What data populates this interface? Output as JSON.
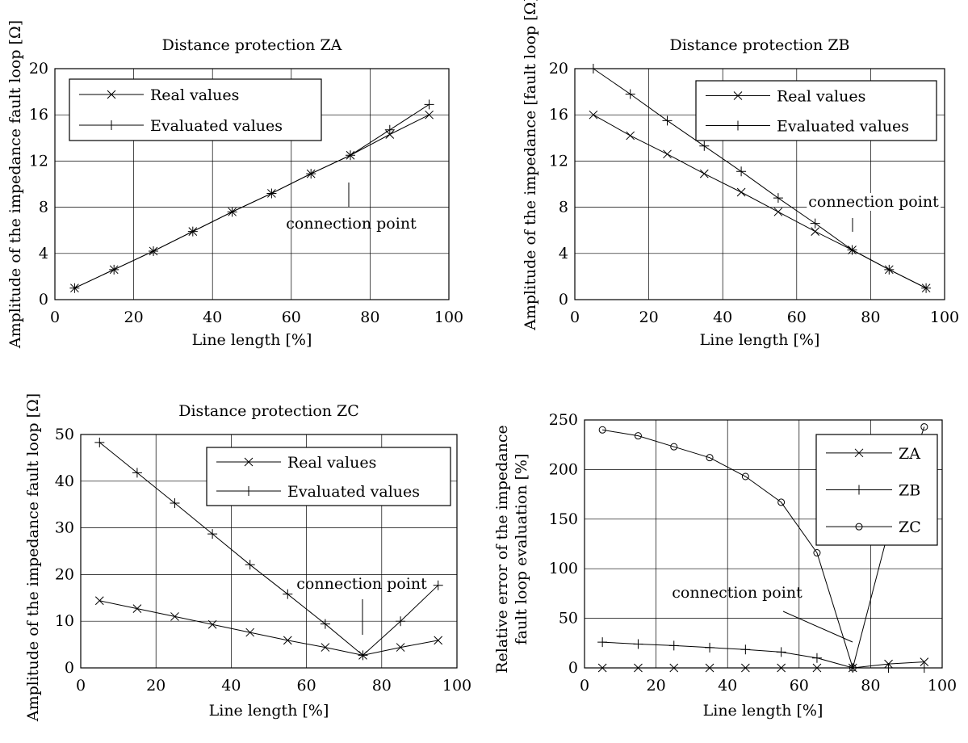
{
  "chart_data": [
    {
      "type": "line",
      "title": "Distance protection ZA",
      "xlabel": "Line length [%]",
      "ylabel": "Amplitude of the impedance fault loop [Ω]",
      "xlim": [
        0,
        100
      ],
      "ylim": [
        0,
        20
      ],
      "xticks": [
        "0",
        "20",
        "40",
        "60",
        "80",
        "100"
      ],
      "yticks": [
        "0",
        "4",
        "8",
        "12",
        "16",
        "20"
      ],
      "grid": true,
      "legend_position": "top-left",
      "x": [
        5,
        15,
        25,
        35,
        45,
        55,
        65,
        75,
        85,
        95
      ],
      "series": [
        {
          "name": "Real values",
          "marker": "x",
          "values": [
            1.0,
            2.6,
            4.2,
            5.9,
            7.6,
            9.2,
            10.9,
            12.5,
            14.3,
            16.0
          ]
        },
        {
          "name": "Evaluated values",
          "marker": "+",
          "values": [
            1.0,
            2.6,
            4.2,
            5.9,
            7.6,
            9.2,
            10.9,
            12.5,
            14.7,
            16.9
          ]
        }
      ],
      "annotation": {
        "text": "connection point",
        "x": 75
      }
    },
    {
      "type": "line",
      "title": "Distance protection ZB",
      "xlabel": "Line length [%]",
      "ylabel": "Amplitude of the impedance [fault loop [Ω]",
      "xlim": [
        0,
        100
      ],
      "ylim": [
        0,
        20
      ],
      "xticks": [
        "0",
        "20",
        "40",
        "60",
        "80",
        "100"
      ],
      "yticks": [
        "0",
        "4",
        "8",
        "12",
        "16",
        "20"
      ],
      "grid": true,
      "legend_position": "top-right",
      "x": [
        5,
        15,
        25,
        35,
        45,
        55,
        65,
        75,
        85,
        95
      ],
      "series": [
        {
          "name": "Real values",
          "marker": "x",
          "values": [
            16.0,
            14.2,
            12.6,
            10.9,
            9.3,
            7.6,
            5.9,
            4.3,
            2.6,
            1.0
          ]
        },
        {
          "name": "Evaluated values",
          "marker": "+",
          "values": [
            20.0,
            17.8,
            15.5,
            13.3,
            11.1,
            8.8,
            6.6,
            4.3,
            2.6,
            1.0
          ]
        }
      ],
      "annotation": {
        "text": "connection point",
        "x": 75
      }
    },
    {
      "type": "line",
      "title": "Distance protection ZC",
      "xlabel": "Line length [%]",
      "ylabel": "Amplitude of the impedance fault loop [Ω]",
      "xlim": [
        0,
        100
      ],
      "ylim": [
        0,
        50
      ],
      "xticks": [
        "0",
        "20",
        "40",
        "60",
        "80",
        "100"
      ],
      "yticks": [
        "0",
        "10",
        "20",
        "30",
        "40",
        "50"
      ],
      "grid": true,
      "legend_position": "top-right",
      "x": [
        5,
        15,
        25,
        35,
        45,
        55,
        65,
        75,
        85,
        95
      ],
      "series": [
        {
          "name": "Real values",
          "marker": "x",
          "values": [
            14.4,
            12.7,
            11.0,
            9.3,
            7.6,
            5.9,
            4.4,
            2.7,
            4.4,
            5.9
          ]
        },
        {
          "name": "Evaluated values",
          "marker": "+",
          "values": [
            48.3,
            41.8,
            35.3,
            28.7,
            22.1,
            15.8,
            9.4,
            2.7,
            10.0,
            17.7
          ]
        }
      ],
      "annotation": {
        "text": "connection point",
        "x": 75
      }
    },
    {
      "type": "line",
      "title": "",
      "xlabel": "Line length [%]",
      "ylabel": "Relative error of the impedance fault loop evaluation [%]",
      "ylabel_lines": [
        "Relative error of the impedance",
        "fault loop evaluation [%]"
      ],
      "xlim": [
        0,
        100
      ],
      "ylim": [
        0,
        250
      ],
      "xticks": [
        "0",
        "20",
        "40",
        "60",
        "80",
        "100"
      ],
      "yticks": [
        "0",
        "50",
        "100",
        "150",
        "200",
        "250"
      ],
      "grid": true,
      "legend_position": "top-right",
      "x": [
        5,
        15,
        25,
        35,
        45,
        55,
        65,
        75,
        85,
        95
      ],
      "series": [
        {
          "name": "ZA",
          "marker": "x",
          "values": [
            0,
            0,
            0,
            0,
            0,
            0,
            0,
            0,
            4,
            6
          ]
        },
        {
          "name": "ZB",
          "marker": "+",
          "values": [
            26,
            24,
            22.5,
            20.5,
            18.5,
            16,
            10,
            0,
            0,
            0
          ]
        },
        {
          "name": "ZC",
          "marker": "o",
          "values": [
            240,
            234,
            223,
            212,
            193,
            167,
            116,
            0,
            138,
            243
          ]
        }
      ],
      "annotation": {
        "text": "connection point",
        "x": 75
      }
    }
  ]
}
